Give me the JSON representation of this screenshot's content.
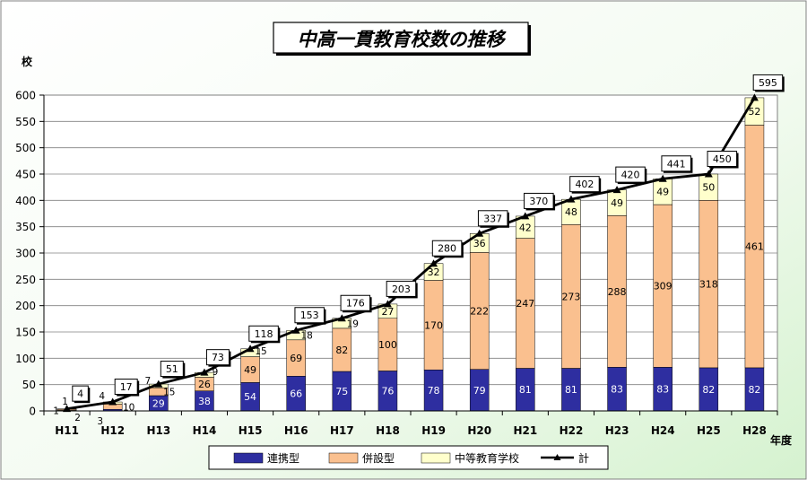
{
  "chart_data": {
    "type": "bar",
    "stacked": true,
    "title": "中高一貫教育校数の推移",
    "ylabel": "校",
    "xlabel": "年度",
    "ylim": [
      0,
      600
    ],
    "yticks": [
      0,
      50,
      100,
      150,
      200,
      250,
      300,
      350,
      400,
      450,
      500,
      550,
      600
    ],
    "grid": true,
    "legend": "bottom",
    "categories": [
      "H11",
      "H12",
      "H13",
      "H14",
      "H15",
      "H16",
      "H17",
      "H18",
      "H19",
      "H20",
      "H21",
      "H22",
      "H23",
      "H24",
      "H25",
      "H28"
    ],
    "series": [
      {
        "name": "連携型",
        "color": "#2e2ea0",
        "values": [
          1,
          3,
          29,
          38,
          54,
          66,
          75,
          76,
          78,
          79,
          81,
          81,
          83,
          83,
          82,
          82
        ]
      },
      {
        "name": "併設型",
        "color": "#fac08f",
        "values": [
          2,
          10,
          15,
          26,
          49,
          69,
          82,
          100,
          170,
          222,
          247,
          273,
          288,
          309,
          318,
          461
        ]
      },
      {
        "name": "中等教育学校",
        "color": "#ffffcc",
        "values": [
          1,
          4,
          7,
          9,
          15,
          18,
          19,
          27,
          32,
          36,
          42,
          48,
          49,
          49,
          50,
          52
        ]
      }
    ],
    "total": {
      "name": "計",
      "color": "#000000",
      "values": [
        4,
        17,
        51,
        73,
        118,
        153,
        176,
        203,
        280,
        337,
        370,
        402,
        420,
        441,
        450,
        595
      ]
    }
  }
}
